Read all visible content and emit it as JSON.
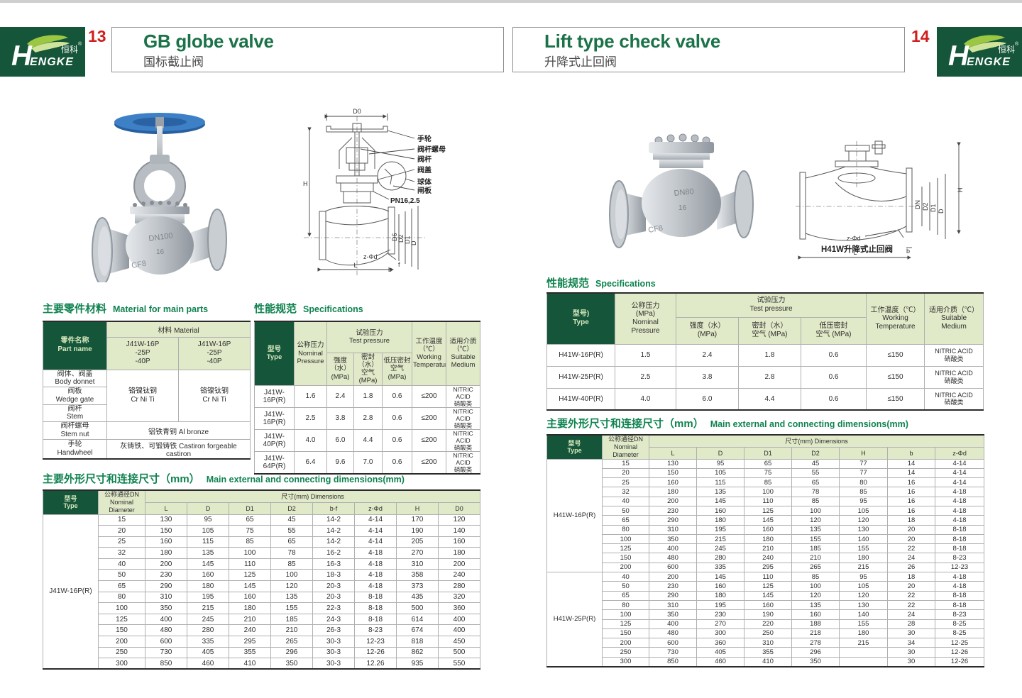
{
  "brand": {
    "h": "H",
    "engke": "ENGKE",
    "zh": "恒科",
    "reg": "®"
  },
  "left": {
    "number": "13",
    "title": "GB globe valve",
    "subtitle": "国标截止阀",
    "photo": {
      "marks": [
        "DN100",
        "16",
        "CF8"
      ]
    },
    "drawing": {
      "d0": "D0",
      "h": "H",
      "l": "L",
      "b": "b",
      "f": "f",
      "z": "z-Φd",
      "pn": "PN16,2.5",
      "stack": [
        "D6",
        "D2",
        "D1",
        "D"
      ],
      "callouts": [
        "手轮",
        "阀杆螺母",
        "阀杆",
        "阀盖",
        "球体",
        "闸板"
      ]
    },
    "material": {
      "heading_zh": "主要零件材料",
      "heading_en": "Material for main parts",
      "part_header": [
        "零件名称",
        "Part name"
      ],
      "material_header": "材料 Material",
      "models": [
        "J41W-16P",
        "-25P",
        "-40P"
      ],
      "parts": [
        [
          "阀体、阀盖",
          "Body donnet"
        ],
        [
          "阀板",
          "Wedge gate"
        ],
        [
          "阀杆",
          "Stem"
        ],
        [
          "阀杆螺母",
          "Stem nut"
        ],
        [
          "手轮",
          "Handwheel"
        ]
      ],
      "cr": [
        "铬镍钛钢",
        "Cr Ni Ti"
      ],
      "bronze": "铝铁青铜 Al bronze",
      "castiron": "灰铸铁、可锻铸铁 Castiron forgeable castiron"
    },
    "spec": {
      "heading_zh": "性能规范",
      "heading_en": "Specifications",
      "h_type": [
        "型号",
        "Type"
      ],
      "h_nominal": [
        "公称压力",
        "Nominal",
        "Pressure"
      ],
      "h_test": [
        "试验压力",
        "Test pressure"
      ],
      "h_strength": [
        "强度（水）",
        "(MPa)"
      ],
      "h_seal": [
        "密封（水）",
        "空气 (MPa)"
      ],
      "h_low": [
        "低压密封",
        "空气 (MPa)"
      ],
      "h_temp": [
        "工作温度",
        "（℃）",
        "Working",
        "Temperature"
      ],
      "h_medium": [
        "适用介质",
        "（℃）",
        "Suitable",
        "Medium"
      ],
      "table": {
        "sections": [
          {
            "rows": [
              [
                "J41W-16P(R)",
                "1.6",
                "2.4",
                "1.8",
                "0.6",
                "≤200",
                [
                  "NITRIC ACID",
                  "硝酸类"
                ]
              ],
              [
                "J41W-16P(R)",
                "2.5",
                "3.8",
                "2.8",
                "0.6",
                "≤200",
                [
                  "NITRIC ACID",
                  "硝酸类"
                ]
              ],
              [
                "J41W-40P(R)",
                "4.0",
                "6.0",
                "4.4",
                "0.6",
                "≤200",
                [
                  "NITRIC ACID",
                  "硝酸类"
                ]
              ],
              [
                "J41W-64P(R)",
                "6.4",
                "9.6",
                "7.0",
                "0.6",
                "≤200",
                [
                  "NITRIC ACID",
                  "硝酸类"
                ]
              ]
            ]
          }
        ]
      }
    },
    "dims": {
      "heading_zh": "主要外形尺寸和连接尺寸（mm）",
      "heading_en": "Main external and connecting dimensions(mm)",
      "h_type": [
        "型号",
        "Type"
      ],
      "h_dn": [
        "公称通径DN",
        "Nominal",
        "Diameter"
      ],
      "h_dims": "尺寸(mm) Dimensions",
      "cols": [
        "L",
        "D",
        "D1",
        "D2",
        "b-f",
        "z-Φd",
        "H",
        "D0"
      ],
      "table": {
        "sections": [
          {
            "type": "J41W-16P(R)",
            "rows": [
              [
                "15",
                "130",
                "95",
                "65",
                "45",
                "14-2",
                "4-14",
                "170",
                "120"
              ],
              [
                "20",
                "150",
                "105",
                "75",
                "55",
                "14-2",
                "4-14",
                "190",
                "140"
              ],
              [
                "25",
                "160",
                "115",
                "85",
                "65",
                "14-2",
                "4-14",
                "205",
                "160"
              ],
              [
                "32",
                "180",
                "135",
                "100",
                "78",
                "16-2",
                "4-18",
                "270",
                "180"
              ],
              [
                "40",
                "200",
                "145",
                "110",
                "85",
                "16-3",
                "4-18",
                "310",
                "200"
              ],
              [
                "50",
                "230",
                "160",
                "125",
                "100",
                "18-3",
                "4-18",
                "358",
                "240"
              ],
              [
                "65",
                "290",
                "180",
                "145",
                "120",
                "20-3",
                "4-18",
                "373",
                "280"
              ],
              [
                "80",
                "310",
                "195",
                "160",
                "135",
                "20-3",
                "8-18",
                "435",
                "320"
              ],
              [
                "100",
                "350",
                "215",
                "180",
                "155",
                "22-3",
                "8-18",
                "500",
                "360"
              ],
              [
                "125",
                "400",
                "245",
                "210",
                "185",
                "24-3",
                "8-18",
                "614",
                "400"
              ],
              [
                "150",
                "480",
                "280",
                "240",
                "210",
                "26-3",
                "8-23",
                "674",
                "400"
              ],
              [
                "200",
                "600",
                "335",
                "295",
                "265",
                "30-3",
                "12-23",
                "818",
                "450"
              ],
              [
                "250",
                "730",
                "405",
                "355",
                "296",
                "30-3",
                "12-26",
                "862",
                "500"
              ],
              [
                "300",
                "850",
                "460",
                "410",
                "350",
                "30-3",
                "12.26",
                "935",
                "550"
              ]
            ]
          }
        ]
      }
    }
  },
  "right": {
    "number": "14",
    "title": "Lift type check valve",
    "subtitle": "升降式止回阀",
    "photo": {
      "marks": [
        "DN80",
        "16",
        "CF8"
      ]
    },
    "drawing": {
      "h": "H",
      "l": "L",
      "b": "b",
      "z": "z-Φd",
      "stack": [
        "DN",
        "D2",
        "D1",
        "D"
      ],
      "caption": "H41W升降式止回阀"
    },
    "spec": {
      "heading_zh": "性能规范",
      "heading_en": "Specifications",
      "h_type": [
        "型号)",
        "Type"
      ],
      "h_nominal": [
        "公称压力",
        "(MPa)",
        "Nominal",
        "Pressure"
      ],
      "h_test": [
        "试验压力",
        "Test pressure"
      ],
      "h_strength": [
        "强度（水）",
        "(MPa)"
      ],
      "h_seal": [
        "密封（水）",
        "空气 (MPa)"
      ],
      "h_low": [
        "低压密封",
        "空气 (MPa)"
      ],
      "h_temp": [
        "工作温度（℃）",
        "Working",
        "Temperature"
      ],
      "h_medium": [
        "适用介质（℃）",
        "Suitable",
        "Medium"
      ],
      "table": {
        "sections": [
          {
            "rows": [
              [
                "H41W-16P(R)",
                "1.5",
                "2.4",
                "1.8",
                "0.6",
                "≤150",
                [
                  "NITRIC ACID",
                  "硝酸类"
                ]
              ],
              [
                "H41W-25P(R)",
                "2.5",
                "3.8",
                "2.8",
                "0.6",
                "≤150",
                [
                  "NITRIC ACID",
                  "硝酸类"
                ]
              ],
              [
                "H41W-40P(R)",
                "4.0",
                "6.0",
                "4.4",
                "0.6",
                "≤150",
                [
                  "NITRIC ACID",
                  "硝酸类"
                ]
              ]
            ]
          }
        ]
      }
    },
    "dims": {
      "heading_zh": "主要外形尺寸和连接尺寸（mm）",
      "heading_en": "Main external and connecting dimensions(mm)",
      "h_type": [
        "型号",
        "Type"
      ],
      "h_dn": [
        "公称通径DN",
        "Nominal",
        "Diameter"
      ],
      "h_dims": "尺寸(mm) Dimensions",
      "cols": [
        "L",
        "D",
        "D1",
        "D2",
        "H",
        "b",
        "z-Φd"
      ],
      "table": {
        "sections": [
          {
            "type": "H41W-16P(R)",
            "rows": [
              [
                "15",
                "130",
                "95",
                "65",
                "45",
                "77",
                "14",
                "4-14"
              ],
              [
                "20",
                "150",
                "105",
                "75",
                "55",
                "77",
                "14",
                "4-14"
              ],
              [
                "25",
                "160",
                "115",
                "85",
                "65",
                "80",
                "16",
                "4-14"
              ],
              [
                "32",
                "180",
                "135",
                "100",
                "78",
                "85",
                "16",
                "4-18"
              ],
              [
                "40",
                "200",
                "145",
                "110",
                "85",
                "95",
                "16",
                "4-18"
              ],
              [
                "50",
                "230",
                "160",
                "125",
                "100",
                "105",
                "16",
                "4-18"
              ],
              [
                "65",
                "290",
                "180",
                "145",
                "120",
                "120",
                "18",
                "4-18"
              ],
              [
                "80",
                "310",
                "195",
                "160",
                "135",
                "130",
                "20",
                "8-18"
              ],
              [
                "100",
                "350",
                "215",
                "180",
                "155",
                "140",
                "20",
                "8-18"
              ],
              [
                "125",
                "400",
                "245",
                "210",
                "185",
                "155",
                "22",
                "8-18"
              ],
              [
                "150",
                "480",
                "280",
                "240",
                "210",
                "180",
                "24",
                "8-23"
              ],
              [
                "200",
                "600",
                "335",
                "295",
                "265",
                "215",
                "26",
                "12-23"
              ]
            ]
          },
          {
            "type": "H41W-25P(R)",
            "rows": [
              [
                "40",
                "200",
                "145",
                "110",
                "85",
                "95",
                "18",
                "4-18"
              ],
              [
                "50",
                "230",
                "160",
                "125",
                "100",
                "105",
                "20",
                "4-18"
              ],
              [
                "65",
                "290",
                "180",
                "145",
                "120",
                "120",
                "22",
                "8-18"
              ],
              [
                "80",
                "310",
                "195",
                "160",
                "135",
                "130",
                "22",
                "8-18"
              ],
              [
                "100",
                "350",
                "230",
                "190",
                "160",
                "140",
                "24",
                "8-23"
              ],
              [
                "125",
                "400",
                "270",
                "220",
                "188",
                "155",
                "28",
                "8-25"
              ],
              [
                "150",
                "480",
                "300",
                "250",
                "218",
                "180",
                "30",
                "8-25"
              ],
              [
                "200",
                "600",
                "360",
                "310",
                "278",
                "215",
                "34",
                "12-25"
              ],
              [
                "250",
                "730",
                "405",
                "355",
                "296",
                "",
                "30",
                "12-26"
              ],
              [
                "300",
                "850",
                "460",
                "410",
                "350",
                "",
                "30",
                "12-26"
              ]
            ]
          }
        ]
      }
    }
  }
}
